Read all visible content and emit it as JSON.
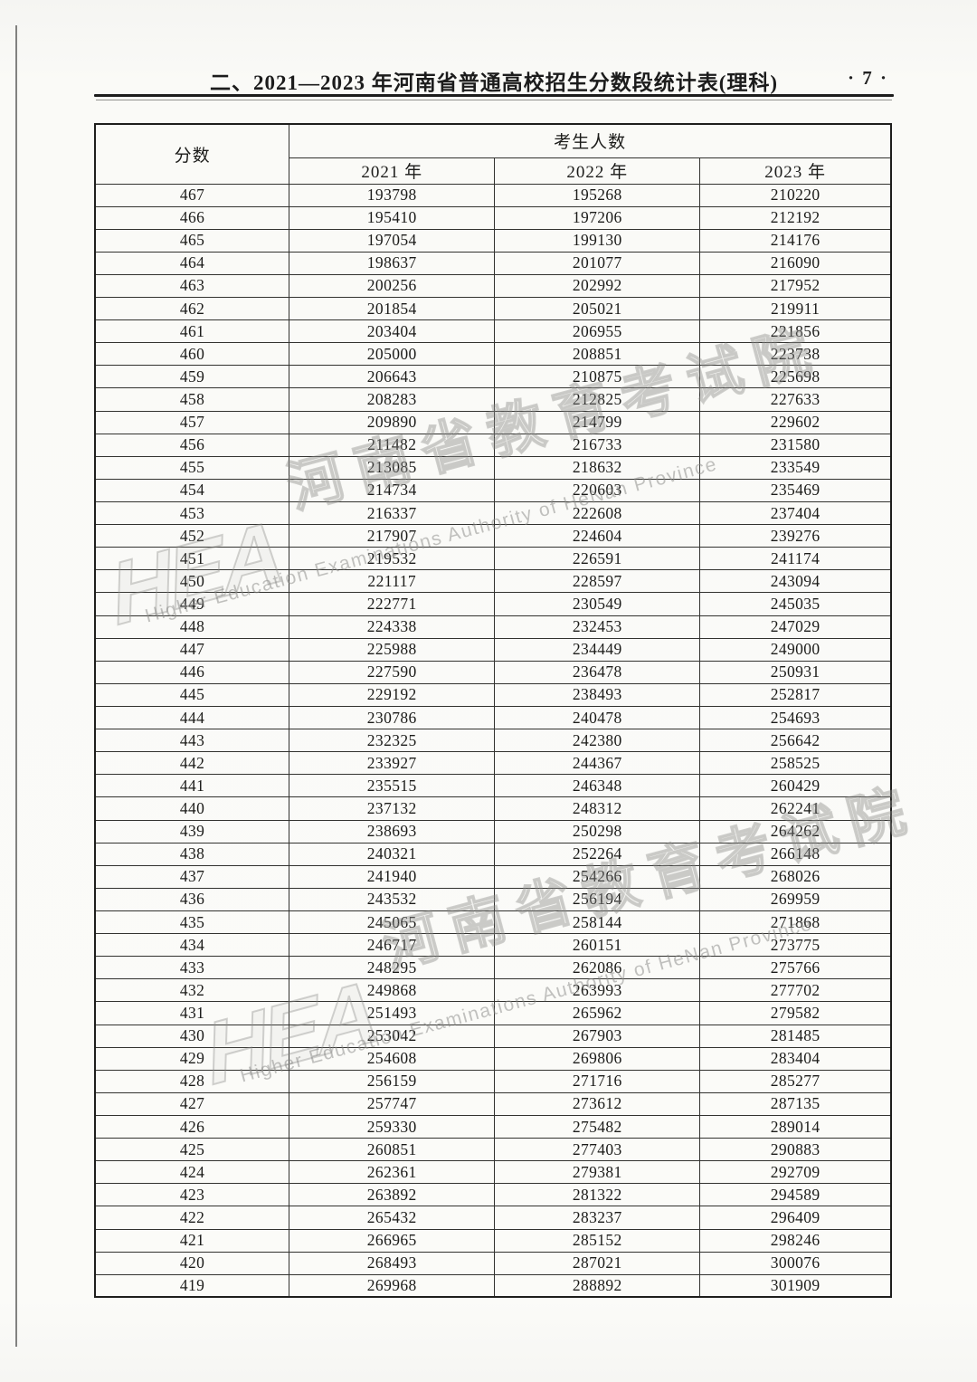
{
  "page": {
    "title": "二、2021—2023 年河南省普通高校招生分数段统计表(理科)",
    "page_number": "· 7 ·"
  },
  "table": {
    "score_header": "分数",
    "group_header": "考生人数",
    "year_headers": [
      "2021 年",
      "2022 年",
      "2023 年"
    ],
    "rows": [
      {
        "score": "467",
        "y2021": "193798",
        "y2022": "195268",
        "y2023": "210220"
      },
      {
        "score": "466",
        "y2021": "195410",
        "y2022": "197206",
        "y2023": "212192"
      },
      {
        "score": "465",
        "y2021": "197054",
        "y2022": "199130",
        "y2023": "214176"
      },
      {
        "score": "464",
        "y2021": "198637",
        "y2022": "201077",
        "y2023": "216090"
      },
      {
        "score": "463",
        "y2021": "200256",
        "y2022": "202992",
        "y2023": "217952"
      },
      {
        "score": "462",
        "y2021": "201854",
        "y2022": "205021",
        "y2023": "219911"
      },
      {
        "score": "461",
        "y2021": "203404",
        "y2022": "206955",
        "y2023": "221856"
      },
      {
        "score": "460",
        "y2021": "205000",
        "y2022": "208851",
        "y2023": "223738"
      },
      {
        "score": "459",
        "y2021": "206643",
        "y2022": "210875",
        "y2023": "225698"
      },
      {
        "score": "458",
        "y2021": "208283",
        "y2022": "212825",
        "y2023": "227633"
      },
      {
        "score": "457",
        "y2021": "209890",
        "y2022": "214799",
        "y2023": "229602"
      },
      {
        "score": "456",
        "y2021": "211482",
        "y2022": "216733",
        "y2023": "231580"
      },
      {
        "score": "455",
        "y2021": "213085",
        "y2022": "218632",
        "y2023": "233549"
      },
      {
        "score": "454",
        "y2021": "214734",
        "y2022": "220603",
        "y2023": "235469"
      },
      {
        "score": "453",
        "y2021": "216337",
        "y2022": "222608",
        "y2023": "237404"
      },
      {
        "score": "452",
        "y2021": "217907",
        "y2022": "224604",
        "y2023": "239276"
      },
      {
        "score": "451",
        "y2021": "219532",
        "y2022": "226591",
        "y2023": "241174"
      },
      {
        "score": "450",
        "y2021": "221117",
        "y2022": "228597",
        "y2023": "243094"
      },
      {
        "score": "449",
        "y2021": "222771",
        "y2022": "230549",
        "y2023": "245035"
      },
      {
        "score": "448",
        "y2021": "224338",
        "y2022": "232453",
        "y2023": "247029"
      },
      {
        "score": "447",
        "y2021": "225988",
        "y2022": "234449",
        "y2023": "249000"
      },
      {
        "score": "446",
        "y2021": "227590",
        "y2022": "236478",
        "y2023": "250931"
      },
      {
        "score": "445",
        "y2021": "229192",
        "y2022": "238493",
        "y2023": "252817"
      },
      {
        "score": "444",
        "y2021": "230786",
        "y2022": "240478",
        "y2023": "254693"
      },
      {
        "score": "443",
        "y2021": "232325",
        "y2022": "242380",
        "y2023": "256642"
      },
      {
        "score": "442",
        "y2021": "233927",
        "y2022": "244367",
        "y2023": "258525"
      },
      {
        "score": "441",
        "y2021": "235515",
        "y2022": "246348",
        "y2023": "260429"
      },
      {
        "score": "440",
        "y2021": "237132",
        "y2022": "248312",
        "y2023": "262241"
      },
      {
        "score": "439",
        "y2021": "238693",
        "y2022": "250298",
        "y2023": "264262"
      },
      {
        "score": "438",
        "y2021": "240321",
        "y2022": "252264",
        "y2023": "266148"
      },
      {
        "score": "437",
        "y2021": "241940",
        "y2022": "254266",
        "y2023": "268026"
      },
      {
        "score": "436",
        "y2021": "243532",
        "y2022": "256194",
        "y2023": "269959"
      },
      {
        "score": "435",
        "y2021": "245065",
        "y2022": "258144",
        "y2023": "271868"
      },
      {
        "score": "434",
        "y2021": "246717",
        "y2022": "260151",
        "y2023": "273775"
      },
      {
        "score": "433",
        "y2021": "248295",
        "y2022": "262086",
        "y2023": "275766"
      },
      {
        "score": "432",
        "y2021": "249868",
        "y2022": "263993",
        "y2023": "277702"
      },
      {
        "score": "431",
        "y2021": "251493",
        "y2022": "265962",
        "y2023": "279582"
      },
      {
        "score": "430",
        "y2021": "253042",
        "y2022": "267903",
        "y2023": "281485"
      },
      {
        "score": "429",
        "y2021": "254608",
        "y2022": "269806",
        "y2023": "283404"
      },
      {
        "score": "428",
        "y2021": "256159",
        "y2022": "271716",
        "y2023": "285277"
      },
      {
        "score": "427",
        "y2021": "257747",
        "y2022": "273612",
        "y2023": "287135"
      },
      {
        "score": "426",
        "y2021": "259330",
        "y2022": "275482",
        "y2023": "289014"
      },
      {
        "score": "425",
        "y2021": "260851",
        "y2022": "277403",
        "y2023": "290883"
      },
      {
        "score": "424",
        "y2021": "262361",
        "y2022": "279381",
        "y2023": "292709"
      },
      {
        "score": "423",
        "y2021": "263892",
        "y2022": "281322",
        "y2023": "294589"
      },
      {
        "score": "422",
        "y2021": "265432",
        "y2022": "283237",
        "y2023": "296409"
      },
      {
        "score": "421",
        "y2021": "266965",
        "y2022": "285152",
        "y2023": "298246"
      },
      {
        "score": "420",
        "y2021": "268493",
        "y2022": "287021",
        "y2023": "300076"
      },
      {
        "score": "419",
        "y2021": "269968",
        "y2022": "288892",
        "y2023": "301909"
      }
    ]
  },
  "watermark": {
    "logo": "HEA",
    "cn": "河南省教育考试院",
    "en": "Higher Education Examinations Authority of HeNan Province"
  }
}
